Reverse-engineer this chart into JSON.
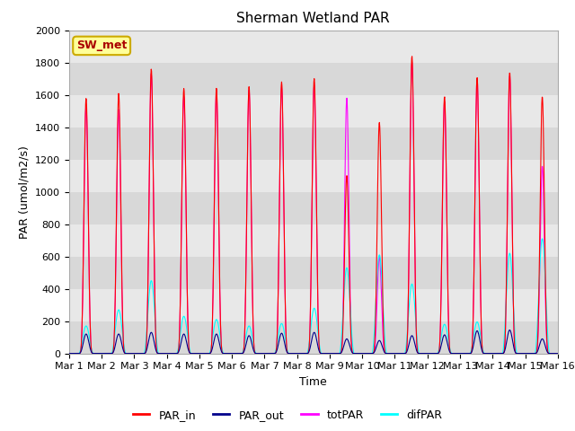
{
  "title": "Sherman Wetland PAR",
  "xlabel": "Time",
  "ylabel": "PAR (umol/m2/s)",
  "ylim": [
    0,
    2000
  ],
  "xlim_days": [
    0,
    15
  ],
  "x_tick_labels": [
    "Mar 1",
    "Mar 2",
    "Mar 3",
    "Mar 4",
    "Mar 5",
    "Mar 6",
    "Mar 7",
    "Mar 8",
    "Mar 9",
    "Mar 10",
    "Mar 11",
    "Mar 12",
    "Mar 13",
    "Mar 14",
    "Mar 15",
    "Mar 16"
  ],
  "colors": {
    "PAR_in": "#ff0000",
    "PAR_out": "#00008b",
    "totPAR": "#ff00ff",
    "difPAR": "#00ffff"
  },
  "station_label": "SW_met",
  "station_label_color": "#aa0000",
  "station_bg_color": "#ffff99",
  "station_border_color": "#ccaa00",
  "bg_color": "#e8e8e8",
  "line_width": 0.8,
  "title_fontsize": 11,
  "axis_fontsize": 9,
  "tick_fontsize": 8,
  "legend_fontsize": 9,
  "day_peaks_PAR_in": [
    1580,
    1610,
    1760,
    1640,
    1640,
    1650,
    1680,
    1700,
    1100,
    1430,
    1840,
    1590,
    1710,
    1740,
    1590
  ],
  "day_peaks_totPAR": [
    1530,
    1510,
    1730,
    1590,
    1620,
    1630,
    1650,
    1660,
    1580,
    600,
    1800,
    1560,
    1700,
    1720,
    1160
  ],
  "day_peaks_PAR_out": [
    120,
    120,
    130,
    120,
    120,
    110,
    125,
    130,
    90,
    80,
    110,
    115,
    140,
    145,
    90
  ],
  "day_peaks_difPAR": [
    170,
    270,
    450,
    230,
    210,
    170,
    185,
    280,
    530,
    610,
    430,
    180,
    195,
    620,
    710
  ],
  "band_colors": [
    "#d8d8d8",
    "#e8e8e8"
  ]
}
